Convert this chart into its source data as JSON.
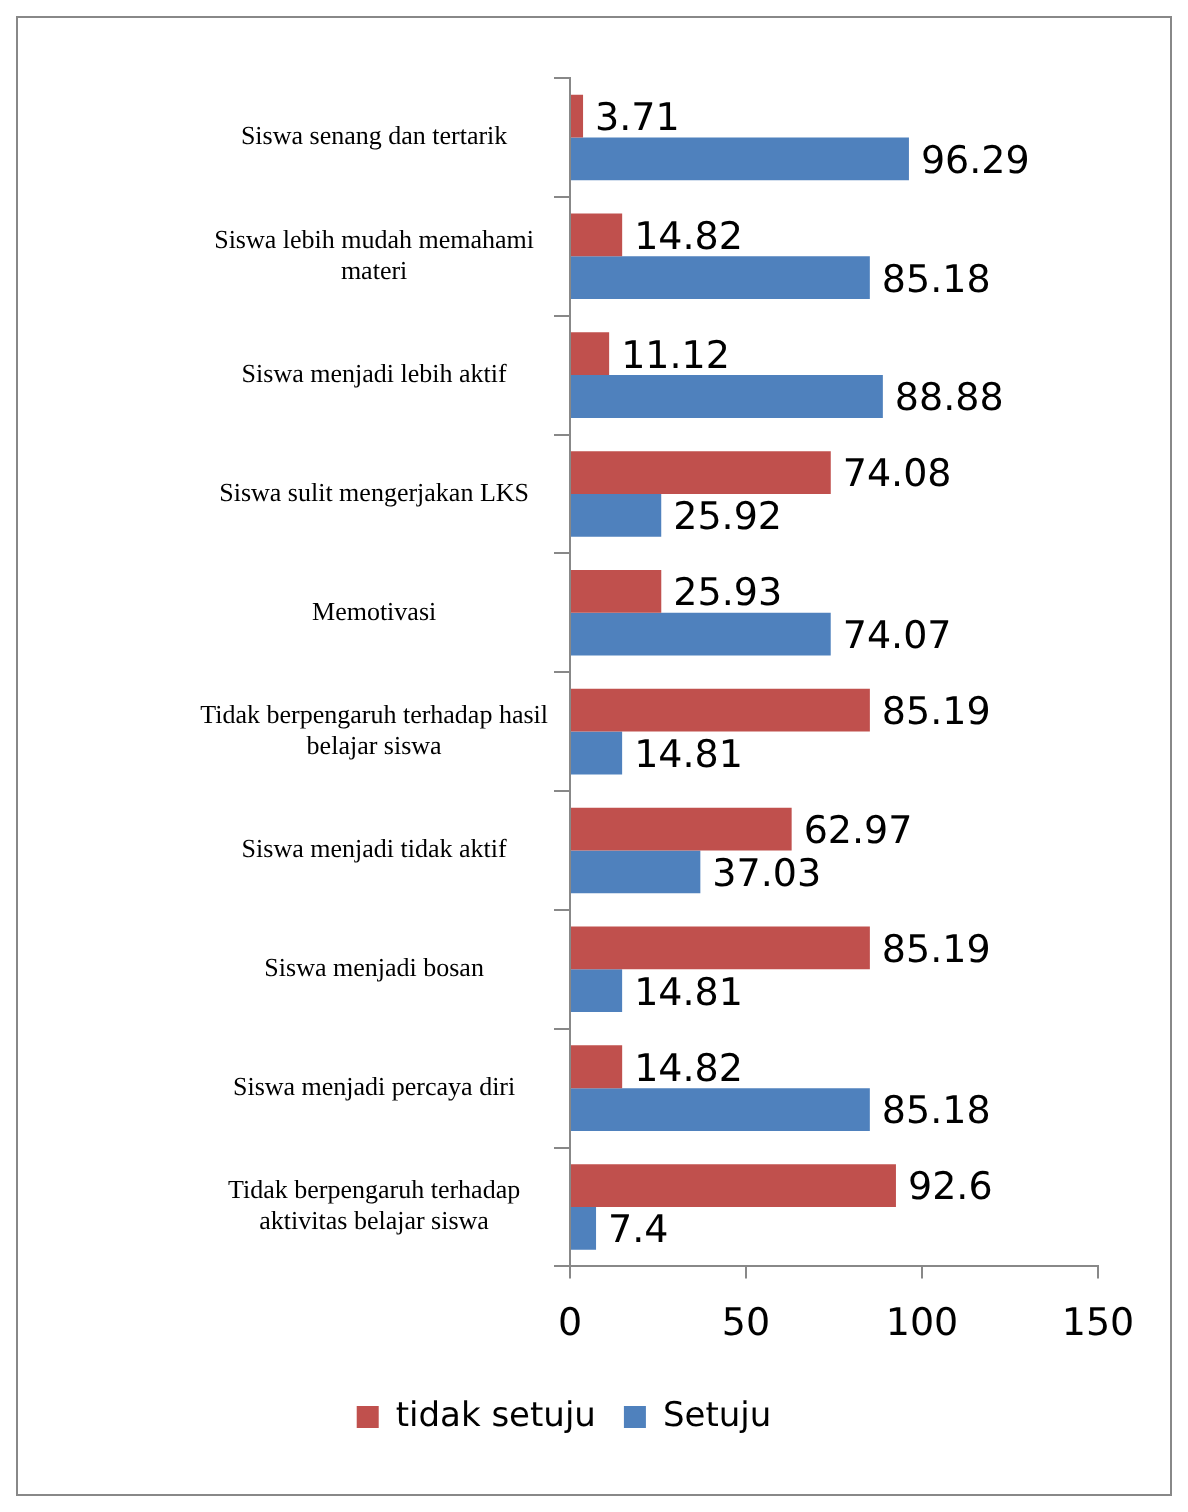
{
  "chart_data": {
    "type": "bar",
    "orientation": "horizontal",
    "categories": [
      "Siswa senang dan tertarik",
      "Siswa lebih mudah memahami materi",
      "Siswa menjadi lebih aktif",
      "Siswa sulit mengerjakan LKS",
      "Memotivasi",
      "Tidak berpengaruh terhadap hasil belajar siswa",
      "Siswa menjadi tidak aktif",
      "Siswa menjadi bosan",
      "Siswa menjadi percaya diri",
      "Tidak berpengaruh terhadap aktivitas belajar siswa"
    ],
    "series": [
      {
        "name": "tidak setuju",
        "color": "#c0504d",
        "values": [
          3.71,
          14.82,
          11.12,
          74.08,
          25.93,
          85.19,
          62.97,
          85.19,
          14.82,
          92.6
        ]
      },
      {
        "name": "Setuju",
        "color": "#4f81bd",
        "values": [
          96.29,
          85.18,
          88.88,
          25.92,
          74.07,
          14.81,
          37.03,
          14.81,
          85.18,
          7.4
        ]
      }
    ],
    "xlim": [
      0,
      150
    ],
    "xticks": [
      0,
      50,
      100,
      150
    ],
    "grid": false,
    "legend": "bottom",
    "data_labels": true
  }
}
